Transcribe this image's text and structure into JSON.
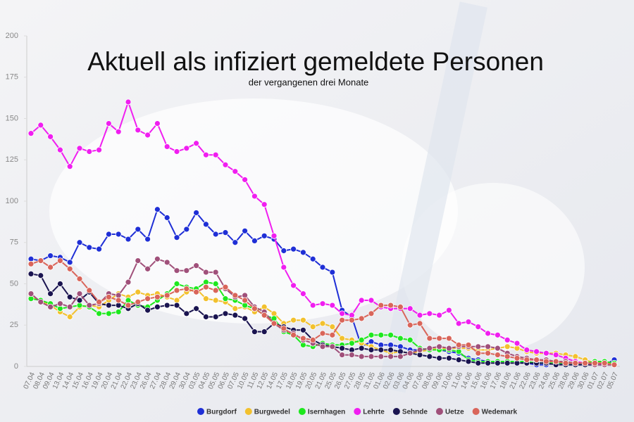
{
  "chart_data": {
    "type": "line",
    "title": "Aktuell als infiziert gemeldete Personen",
    "subtitle": "der vergangenen drei Monate",
    "categories": [
      "07.04",
      "08.04",
      "09.04",
      "13.04",
      "14.04",
      "15.04",
      "16.04",
      "19.04",
      "20.04",
      "21.04",
      "22.04",
      "23.04",
      "26.04",
      "27.04",
      "28.04",
      "29.04",
      "30.04",
      "03.05",
      "04.05",
      "05.05",
      "06.05",
      "07.05",
      "10.05",
      "11.05",
      "12.05",
      "14.05",
      "17.05",
      "18.05",
      "19.05",
      "20.05",
      "21.05",
      "25.05",
      "26.05",
      "27.05",
      "28.05",
      "31.05",
      "01.06",
      "02.06",
      "03.06",
      "04.06",
      "07.06",
      "08.06",
      "09.06",
      "10.06",
      "11.06",
      "14.06",
      "15.06",
      "16.06",
      "17.06",
      "18.06",
      "21.06",
      "22.06",
      "23.06",
      "24.06",
      "25.06",
      "28.06",
      "29.06",
      "30.06",
      "01.07",
      "02.07",
      "05.07"
    ],
    "ylim": [
      0,
      200
    ],
    "yticks": [
      0,
      25,
      50,
      75,
      100,
      125,
      150,
      175,
      200
    ],
    "grid": false,
    "series": [
      {
        "name": "Burgdorf",
        "color": "#1f2fd6",
        "values": [
          65,
          64,
          67,
          66,
          63,
          75,
          72,
          71,
          80,
          80,
          77,
          83,
          77,
          95,
          90,
          78,
          83,
          93,
          86,
          80,
          81,
          75,
          82,
          76,
          79,
          77,
          70,
          71,
          69,
          65,
          60,
          57,
          34,
          30,
          12,
          15,
          13,
          13,
          12,
          10,
          10,
          10,
          10,
          9,
          8,
          5,
          4,
          3,
          3,
          3,
          3,
          2,
          1,
          1,
          2,
          1,
          1,
          1,
          1,
          1,
          4
        ]
      },
      {
        "name": "Burgwedel",
        "color": "#f2c12e",
        "values": [
          42,
          40,
          37,
          33,
          30,
          36,
          37,
          36,
          40,
          44,
          42,
          45,
          43,
          44,
          42,
          40,
          45,
          47,
          41,
          40,
          39,
          35,
          36,
          33,
          36,
          32,
          26,
          28,
          28,
          24,
          26,
          24,
          17,
          16,
          14,
          12,
          10,
          8,
          9,
          8,
          9,
          10,
          11,
          11,
          11,
          11,
          10,
          10,
          11,
          12,
          11,
          9,
          8,
          8,
          8,
          7,
          6,
          4,
          2,
          2,
          2
        ]
      },
      {
        "name": "Isernhagen",
        "color": "#1ee81e",
        "values": [
          41,
          40,
          38,
          35,
          36,
          37,
          36,
          32,
          32,
          33,
          40,
          37,
          36,
          40,
          44,
          50,
          48,
          47,
          51,
          50,
          41,
          40,
          37,
          35,
          31,
          29,
          21,
          19,
          13,
          12,
          14,
          13,
          13,
          14,
          16,
          19,
          19,
          19,
          17,
          16,
          11,
          10,
          10,
          10,
          9,
          4,
          3,
          3,
          3,
          3,
          3,
          3,
          2,
          2,
          2,
          2,
          2,
          2,
          3,
          3,
          2
        ]
      },
      {
        "name": "Lehrte",
        "color": "#f01ef0",
        "values": [
          141,
          146,
          139,
          131,
          121,
          132,
          130,
          131,
          147,
          142,
          160,
          143,
          140,
          147,
          133,
          130,
          132,
          135,
          128,
          128,
          122,
          118,
          113,
          103,
          98,
          79,
          60,
          49,
          44,
          37,
          38,
          37,
          32,
          31,
          40,
          40,
          36,
          35,
          35,
          35,
          31,
          32,
          31,
          34,
          26,
          27,
          24,
          20,
          19,
          16,
          14,
          10,
          9,
          8,
          7,
          5,
          3,
          2,
          2,
          1,
          1
        ]
      },
      {
        "name": "Sehnde",
        "color": "#1a1450",
        "values": [
          56,
          55,
          44,
          50,
          42,
          40,
          45,
          38,
          37,
          37,
          35,
          38,
          34,
          36,
          37,
          37,
          32,
          35,
          30,
          30,
          32,
          31,
          29,
          21,
          21,
          26,
          24,
          22,
          22,
          16,
          13,
          12,
          11,
          10,
          11,
          10,
          10,
          10,
          9,
          8,
          7,
          6,
          5,
          5,
          4,
          3,
          2,
          2,
          2,
          2,
          2,
          2,
          2,
          2,
          1,
          1,
          1,
          1,
          1,
          1,
          1
        ]
      },
      {
        "name": "Uetze",
        "color": "#a0507a",
        "values": [
          44,
          39,
          36,
          38,
          36,
          44,
          37,
          38,
          44,
          43,
          51,
          64,
          59,
          65,
          63,
          58,
          58,
          61,
          57,
          57,
          47,
          42,
          43,
          36,
          33,
          26,
          22,
          20,
          16,
          14,
          12,
          12,
          7,
          7,
          6,
          6,
          6,
          6,
          6,
          8,
          10,
          11,
          12,
          11,
          12,
          12,
          12,
          12,
          11,
          8,
          6,
          5,
          4,
          4,
          3,
          3,
          2,
          2,
          1,
          1,
          1
        ]
      },
      {
        "name": "Wedemark",
        "color": "#d9655a",
        "values": [
          62,
          64,
          60,
          64,
          59,
          53,
          46,
          39,
          42,
          40,
          37,
          39,
          41,
          42,
          43,
          46,
          47,
          45,
          48,
          46,
          48,
          43,
          40,
          35,
          31,
          26,
          23,
          19,
          17,
          16,
          20,
          19,
          28,
          28,
          29,
          32,
          37,
          37,
          36,
          25,
          26,
          17,
          17,
          17,
          13,
          13,
          8,
          8,
          7,
          6,
          5,
          4,
          4,
          3,
          3,
          2,
          2,
          2,
          2,
          2,
          1
        ]
      }
    ]
  }
}
